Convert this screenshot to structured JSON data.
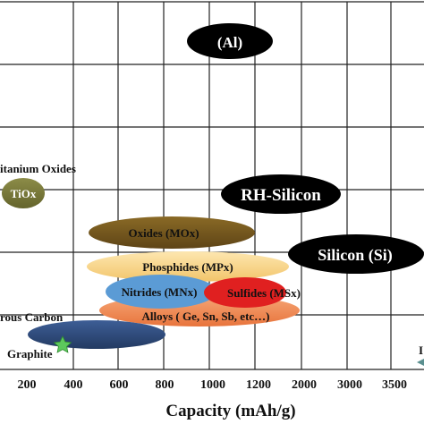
{
  "chart_data": {
    "type": "scatter",
    "title": "",
    "xlabel": "Capacity (mAh/g)",
    "ylabel": "",
    "grid": true,
    "x_ticks": [
      "200",
      "400",
      "600",
      "800",
      "1000",
      "1200",
      "2000",
      "3000",
      "3500"
    ],
    "regions": [
      {
        "name": "(Al)",
        "x_range": [
          1000,
          1200
        ],
        "color": "#000000",
        "label_color": "#ffffff"
      },
      {
        "name": "RH-Silicon",
        "x_range": [
          1000,
          2000
        ],
        "color": "#000000",
        "label_color": "#ffffff"
      },
      {
        "name": "Silicon (Si)",
        "x_range": [
          2000,
          3500
        ],
        "color": "#000000",
        "label_color": "#ffffff"
      },
      {
        "name": "TiOx",
        "side_label": "itanium Oxides",
        "x_range": [
          170,
          230
        ],
        "color": "#7a7a3a",
        "label_color": "#ffffff"
      },
      {
        "name": "Oxides (MOx)",
        "x_range": [
          450,
          1200
        ],
        "color": "#7a5c1e",
        "label_color": "#ffffff"
      },
      {
        "name": "Phosphides (MPx)",
        "x_range": [
          500,
          1600
        ],
        "color": "#f6d58c",
        "label_color": "#111111"
      },
      {
        "name": "Nitrides (MNx)",
        "x_range": [
          600,
          1000
        ],
        "color": "#5b9bd5",
        "label_color": "#111111"
      },
      {
        "name": "Sulfides (MSx)",
        "x_range": [
          1000,
          1200
        ],
        "color": "#e02020",
        "label_color": "#111111"
      },
      {
        "name": "Alloys ( Ge, Sn, Sb, etc…)",
        "x_range": [
          500,
          1500
        ],
        "color": "#f08a52",
        "label_color": "#111111"
      },
      {
        "name": "Carbon",
        "side_label": "rous Carbon",
        "x_range": [
          200,
          800
        ],
        "color": "#2f4a7a",
        "label_color": "#111111"
      }
    ],
    "points": [
      {
        "name": "Graphite",
        "x": 372,
        "color": "#5cc85c",
        "marker": "star"
      }
    ],
    "edge_marker": {
      "name": "I",
      "x": 3600
    }
  }
}
